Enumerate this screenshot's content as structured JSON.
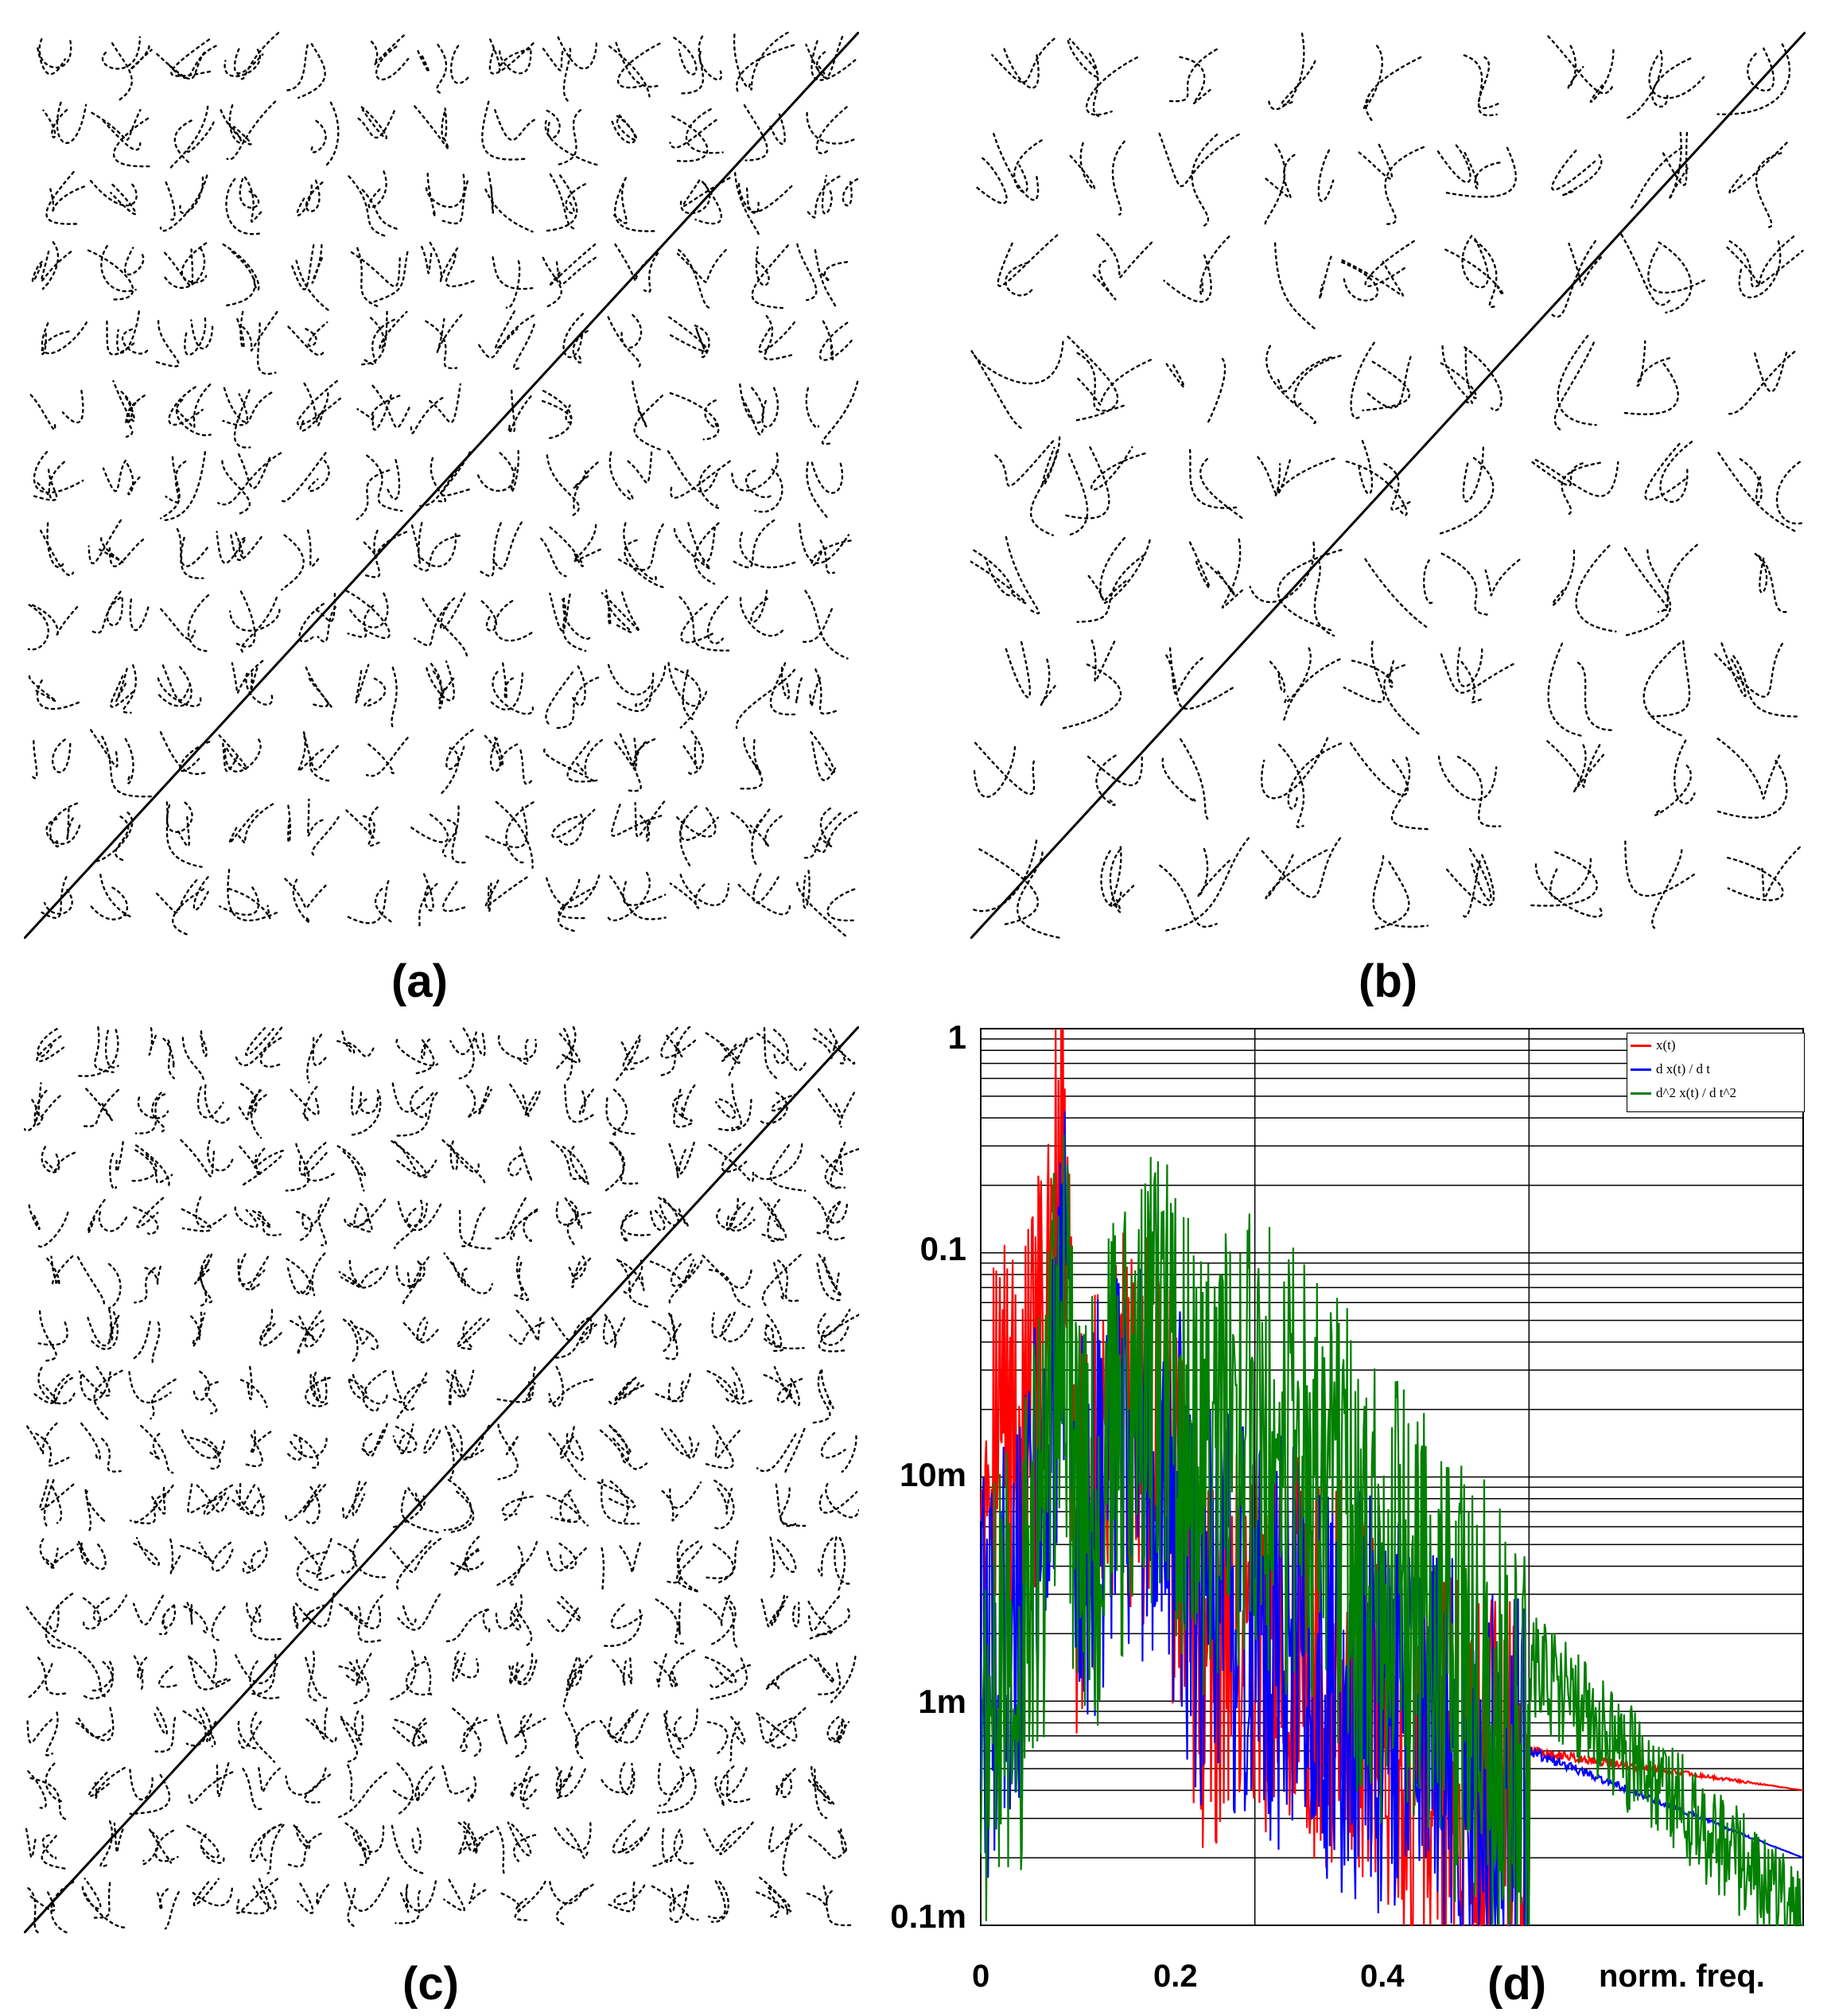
{
  "captions": {
    "a": "(a)",
    "b": "(b)",
    "c": "(c)",
    "d": "(d)"
  },
  "recurrence_plots": {
    "a": {
      "grid_cells": 13
    },
    "b": {
      "grid_cells": 9
    },
    "c": {
      "grid_cells": 16
    }
  },
  "chart_data": {
    "type": "line",
    "xlabel": "norm. freq.",
    "ylabel": "",
    "yscale": "log",
    "xlim": [
      0,
      0.4
    ],
    "ylim": [
      0.0001,
      1
    ],
    "xticks": [
      "0",
      "0.2",
      "0.4"
    ],
    "yticks": [
      "1",
      "0.1",
      "10m",
      "1m",
      "0.1m"
    ],
    "grid": true,
    "legend_position": "top-right",
    "series": [
      {
        "name": "x(t)",
        "color": "#ff0000",
        "x": [
          0,
          0.01,
          0.03,
          0.05,
          0.06,
          0.07,
          0.1,
          0.13,
          0.16,
          0.2,
          0.24,
          0.28,
          0.32,
          0.36,
          0.4
        ],
        "y": [
          0.03,
          0.04,
          0.03,
          0.08,
          0.9,
          0.01,
          0.03,
          0.03,
          0.003,
          0.004,
          0.003,
          0.002,
          0.001,
          0.0008,
          0.0006
        ]
      },
      {
        "name": "d x(t) / d t",
        "color": "#0000ff",
        "x": [
          0,
          0.01,
          0.03,
          0.05,
          0.06,
          0.07,
          0.1,
          0.13,
          0.16,
          0.2,
          0.24,
          0.28,
          0.32,
          0.36,
          0.4
        ],
        "y": [
          0.002,
          0.003,
          0.005,
          0.03,
          0.2,
          0.01,
          0.02,
          0.03,
          0.005,
          0.004,
          0.003,
          0.002,
          0.0012,
          0.0009,
          0.0006
        ]
      },
      {
        "name": "d^2 x(t) / d t^2",
        "color": "#008000",
        "x": [
          0,
          0.01,
          0.03,
          0.05,
          0.06,
          0.07,
          0.1,
          0.13,
          0.16,
          0.2,
          0.24,
          0.28,
          0.32,
          0.36,
          0.4
        ],
        "y": [
          0.0012,
          0.002,
          0.004,
          0.02,
          0.2,
          0.01,
          0.03,
          0.06,
          0.02,
          0.03,
          0.02,
          0.008,
          0.004,
          0.002,
          0.0015
        ]
      }
    ]
  }
}
